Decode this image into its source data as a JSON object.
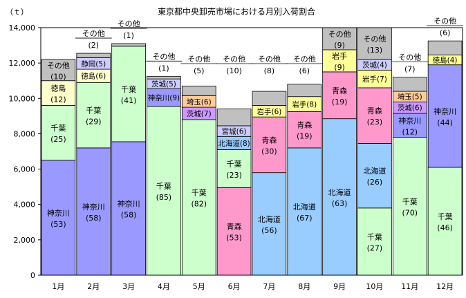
{
  "chart_data": {
    "type": "bar",
    "stacked": true,
    "title": "東京都中央卸売市場における月別入荷割合",
    "ylabel": "（ｔ）",
    "xlabel": "",
    "ylim": [
      0,
      14000
    ],
    "yticks": [
      "0",
      "2,000",
      "4,000",
      "6,000",
      "8,000",
      "10,000",
      "12,000",
      "14,000"
    ],
    "ytick_values": [
      0,
      2000,
      4000,
      6000,
      8000,
      10000,
      12000,
      14000
    ],
    "grid": false,
    "legend": "none",
    "categories": [
      "1月",
      "2月",
      "3月",
      "4月",
      "5月",
      "6月",
      "7月",
      "8月",
      "9月",
      "10月",
      "11月",
      "12月"
    ],
    "months": [
      {
        "label": "1月",
        "segments": [
          {
            "name": "神奈川",
            "pct": "(53)",
            "value": 6500,
            "color": "#9999ff"
          },
          {
            "name": "千葉",
            "pct": "(25)",
            "value": 3100,
            "color": "#ccffcc"
          },
          {
            "name": "徳島",
            "pct": "(12)",
            "value": 1400,
            "color": "#ffffcc"
          },
          {
            "name": "その他",
            "pct": "(10)",
            "value": 1200,
            "color": "#c0c0c0"
          }
        ]
      },
      {
        "label": "2月",
        "segments": [
          {
            "name": "神奈川",
            "pct": "(58)",
            "value": 7200,
            "color": "#9999ff"
          },
          {
            "name": "千葉",
            "pct": "(29)",
            "value": 3700,
            "color": "#ccffcc"
          },
          {
            "name": "徳島(6)",
            "pct": "",
            "value": 750,
            "color": "#ffffcc"
          },
          {
            "name": "静岡(5)",
            "pct": "",
            "value": 650,
            "color": "#ccccff"
          },
          {
            "name": "その他",
            "pct": "(2)",
            "value": 250,
            "color": "#c0c0c0"
          }
        ]
      },
      {
        "label": "3月",
        "segments": [
          {
            "name": "神奈川",
            "pct": "(58)",
            "value": 7550,
            "color": "#9999ff"
          },
          {
            "name": "千葉",
            "pct": "(41)",
            "value": 5400,
            "color": "#ccffcc"
          },
          {
            "name": "その他",
            "pct": "(1)",
            "value": 150,
            "color": "#c0c0c0"
          }
        ]
      },
      {
        "label": "4月",
        "segments": [
          {
            "name": "千葉",
            "pct": "(85)",
            "value": 9550,
            "color": "#ccffcc"
          },
          {
            "name": "神奈川(9)",
            "pct": "",
            "value": 1000,
            "color": "#9999ff"
          },
          {
            "name": "茨城(5)",
            "pct": "",
            "value": 550,
            "color": "#ccccff"
          },
          {
            "name": "その他",
            "pct": "(1)",
            "value": 150,
            "color": "#c0c0c0"
          }
        ]
      },
      {
        "label": "5月",
        "segments": [
          {
            "name": "千葉",
            "pct": "(82)",
            "value": 8800,
            "color": "#ccffcc"
          },
          {
            "name": "茨城(7)",
            "pct": "",
            "value": 700,
            "color": "#cc99ff"
          },
          {
            "name": "埼玉(6)",
            "pct": "",
            "value": 650,
            "color": "#ffcc99"
          },
          {
            "name": "その他",
            "pct": "(5)",
            "value": 550,
            "color": "#c0c0c0"
          }
        ]
      },
      {
        "label": "6月",
        "segments": [
          {
            "name": "青森",
            "pct": "(53)",
            "value": 4950,
            "color": "#ff99cc"
          },
          {
            "name": "千葉",
            "pct": "(23)",
            "value": 2150,
            "color": "#ccffcc"
          },
          {
            "name": "北海道(8)",
            "pct": "",
            "value": 750,
            "color": "#99ccff"
          },
          {
            "name": "宮城(6)",
            "pct": "",
            "value": 600,
            "color": "#ccccff"
          },
          {
            "name": "その他",
            "pct": "(10)",
            "value": 950,
            "color": "#c0c0c0"
          }
        ]
      },
      {
        "label": "7月",
        "segments": [
          {
            "name": "北海道",
            "pct": "(56)",
            "value": 5800,
            "color": "#99ccff"
          },
          {
            "name": "青森",
            "pct": "(30)",
            "value": 3150,
            "color": "#ff99cc"
          },
          {
            "name": "岩手(6)",
            "pct": "",
            "value": 650,
            "color": "#ffff99"
          },
          {
            "name": "その他",
            "pct": "(8)",
            "value": 800,
            "color": "#c0c0c0"
          }
        ]
      },
      {
        "label": "8月",
        "segments": [
          {
            "name": "北海道",
            "pct": "(67)",
            "value": 7200,
            "color": "#99ccff"
          },
          {
            "name": "青森",
            "pct": "(19)",
            "value": 2050,
            "color": "#ff99cc"
          },
          {
            "name": "岩手(8)",
            "pct": "",
            "value": 850,
            "color": "#ffff99"
          },
          {
            "name": "その他",
            "pct": "(6)",
            "value": 700,
            "color": "#c0c0c0"
          }
        ]
      },
      {
        "label": "9月",
        "segments": [
          {
            "name": "北海道",
            "pct": "(63)",
            "value": 8850,
            "color": "#99ccff"
          },
          {
            "name": "青森",
            "pct": "(19)",
            "value": 2650,
            "color": "#ff99cc"
          },
          {
            "name": "岩手",
            "pct": "(9)",
            "value": 1250,
            "color": "#ffff99"
          },
          {
            "name": "その他",
            "pct": "(9)",
            "value": 1250,
            "color": "#c0c0c0"
          }
        ]
      },
      {
        "label": "10月",
        "segments": [
          {
            "name": "千葉",
            "pct": "(27)",
            "value": 3800,
            "color": "#ccffcc"
          },
          {
            "name": "北海道",
            "pct": "(26)",
            "value": 3650,
            "color": "#99ccff"
          },
          {
            "name": "青森",
            "pct": "(23)",
            "value": 3150,
            "color": "#ff99cc"
          },
          {
            "name": "岩手(7)",
            "pct": "",
            "value": 1000,
            "color": "#ffff99"
          },
          {
            "name": "茨城(4)",
            "pct": "",
            "value": 600,
            "color": "#ccccff"
          },
          {
            "name": "その他",
            "pct": "(13)",
            "value": 1800,
            "color": "#c0c0c0"
          }
        ]
      },
      {
        "label": "11月",
        "segments": [
          {
            "name": "千葉",
            "pct": "(70)",
            "value": 7800,
            "color": "#ccffcc"
          },
          {
            "name": "神奈川",
            "pct": "(12)",
            "value": 1350,
            "color": "#9999ff"
          },
          {
            "name": "茨城(6)",
            "pct": "",
            "value": 650,
            "color": "#cc99ff"
          },
          {
            "name": "埼玉(5)",
            "pct": "",
            "value": 600,
            "color": "#ffcc99"
          },
          {
            "name": "その他",
            "pct": "(7)",
            "value": 800,
            "color": "#c0c0c0"
          }
        ]
      },
      {
        "label": "12月",
        "segments": [
          {
            "name": "千葉",
            "pct": "(46)",
            "value": 6100,
            "color": "#ccffcc"
          },
          {
            "name": "神奈川",
            "pct": "(44)",
            "value": 5800,
            "color": "#9999ff"
          },
          {
            "name": "徳島(4)",
            "pct": "",
            "value": 550,
            "color": "#ffff99"
          },
          {
            "name": "その他",
            "pct": "(6)",
            "value": 800,
            "color": "#c0c0c0"
          }
        ]
      }
    ],
    "callouts": [
      {
        "month": "1月",
        "name": "その他",
        "pct": "(10)",
        "style": "inline"
      },
      {
        "month": "2月",
        "name": "その他",
        "pct": "(2)",
        "style": "above"
      },
      {
        "month": "3月",
        "name": "その他",
        "pct": "(1)",
        "style": "above"
      },
      {
        "month": "4月",
        "name": "その他",
        "pct": "(1)",
        "style": "above"
      },
      {
        "month": "5月",
        "name": "その他",
        "pct": "(5)",
        "style": "above"
      },
      {
        "month": "6月",
        "name": "その他",
        "pct": "(10)",
        "style": "above"
      },
      {
        "month": "7月",
        "name": "その他",
        "pct": "(8)",
        "style": "above"
      },
      {
        "month": "8月",
        "name": "その他",
        "pct": "(6)",
        "style": "above"
      },
      {
        "month": "11月",
        "name": "その他",
        "pct": "(7)",
        "style": "above"
      },
      {
        "month": "12月",
        "name": "その他",
        "pct": "(6)",
        "style": "above"
      }
    ]
  }
}
